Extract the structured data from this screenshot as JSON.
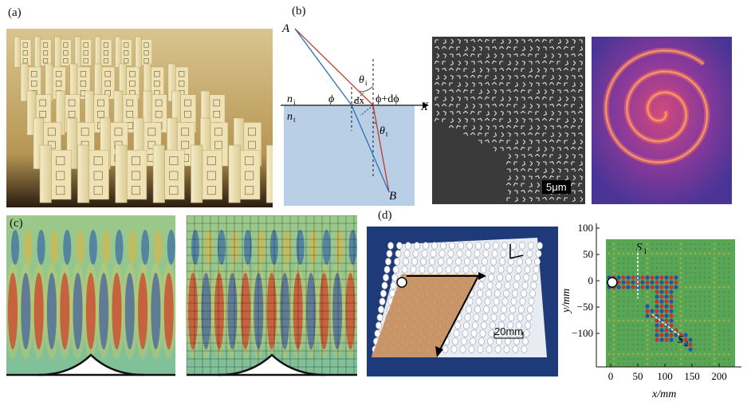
{
  "panels": {
    "a": {
      "label": "(a)"
    },
    "b": {
      "label": "(b)",
      "point_a": "A",
      "point_b": "B",
      "axis_x": "X",
      "n_i": "n",
      "n_i_sub": "i",
      "n_t": "n",
      "n_t_sub": "t",
      "phi": "ϕ",
      "dx": "dx",
      "phi_dphi": "ϕ+dϕ",
      "theta_i": "θ",
      "theta_i_sub": "i",
      "theta_t": "θ",
      "theta_t_sub": "t",
      "scalebar": "5μm"
    },
    "c": {
      "label": "(c)"
    },
    "d": {
      "label": "(d)",
      "scalebar": "20mm",
      "plot": {
        "xlabel": "x/mm",
        "ylabel": "y/mm",
        "x_ticks": [
          "0",
          "50",
          "100",
          "150",
          "200"
        ],
        "y_ticks": [
          "100",
          "50",
          "0",
          "−50",
          "−100"
        ],
        "s1_label": "S",
        "s1_sub": "1",
        "s2_label": "S",
        "s2_sub": "2"
      }
    }
  },
  "colors": {
    "medium_blue": "#b9cfe6",
    "ray_red": "#c0392b",
    "ray_blue": "#2e6fb6",
    "plot_green": "#5aa657",
    "sem_bg": "#3a3a3a",
    "vortex_bg": "#5b3a9e"
  }
}
